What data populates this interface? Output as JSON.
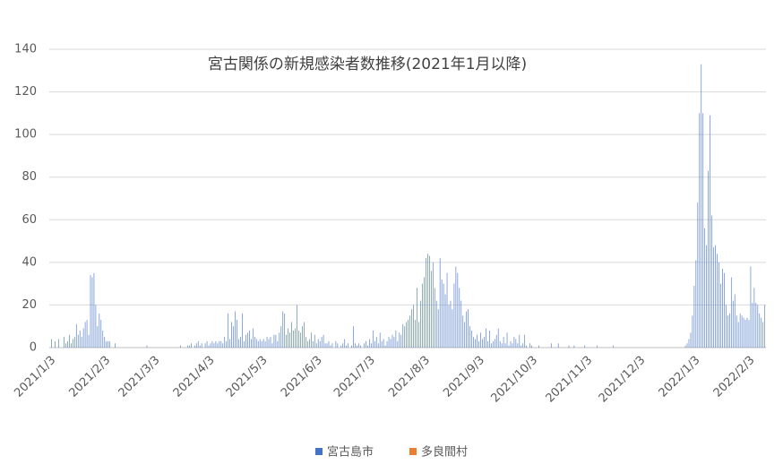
{
  "chart_data": {
    "type": "bar",
    "title": "宮古関係の新規感染者数推移(2021年1月以降)",
    "categories": [
      "2021/1/3",
      null,
      null,
      null,
      null,
      null,
      null,
      null,
      null,
      null,
      null,
      null,
      null,
      null,
      null,
      null,
      null,
      null,
      null,
      null,
      null,
      null,
      null,
      null,
      null,
      null,
      null,
      null,
      null,
      null,
      null,
      "2021/2/3",
      null,
      null,
      null,
      null,
      null,
      null,
      null,
      null,
      null,
      null,
      null,
      null,
      null,
      null,
      null,
      null,
      null,
      null,
      null,
      null,
      null,
      null,
      null,
      null,
      null,
      null,
      null,
      "2021/3/3",
      null,
      null,
      null,
      null,
      null,
      null,
      null,
      null,
      null,
      null,
      null,
      null,
      null,
      null,
      null,
      null,
      null,
      null,
      null,
      null,
      null,
      null,
      null,
      null,
      null,
      null,
      null,
      null,
      null,
      null,
      "2021/4/3",
      null,
      null,
      null,
      null,
      null,
      null,
      null,
      null,
      null,
      null,
      null,
      null,
      null,
      null,
      null,
      null,
      null,
      null,
      null,
      null,
      null,
      null,
      null,
      null,
      null,
      null,
      null,
      null,
      null,
      "2021/5/3",
      null,
      null,
      null,
      null,
      null,
      null,
      null,
      null,
      null,
      null,
      null,
      null,
      null,
      null,
      null,
      null,
      null,
      null,
      null,
      null,
      null,
      null,
      null,
      null,
      null,
      null,
      null,
      null,
      null,
      null,
      "2021/6/3",
      null,
      null,
      null,
      null,
      null,
      null,
      null,
      null,
      null,
      null,
      null,
      null,
      null,
      null,
      null,
      null,
      null,
      null,
      null,
      null,
      null,
      null,
      null,
      null,
      null,
      null,
      null,
      null,
      null,
      "2021/7/3",
      null,
      null,
      null,
      null,
      null,
      null,
      null,
      null,
      null,
      null,
      null,
      null,
      null,
      null,
      null,
      null,
      null,
      null,
      null,
      null,
      null,
      null,
      null,
      null,
      null,
      null,
      null,
      null,
      null,
      null,
      "2021/8/3",
      null,
      null,
      null,
      null,
      null,
      null,
      null,
      null,
      null,
      null,
      null,
      null,
      null,
      null,
      null,
      null,
      null,
      null,
      null,
      null,
      null,
      null,
      null,
      null,
      null,
      null,
      null,
      null,
      null,
      null,
      "2021/9/3",
      null,
      null,
      null,
      null,
      null,
      null,
      null,
      null,
      null,
      null,
      null,
      null,
      null,
      null,
      null,
      null,
      null,
      null,
      null,
      null,
      null,
      null,
      null,
      null,
      null,
      null,
      null,
      null,
      null,
      "2021/10/3",
      null,
      null,
      null,
      null,
      null,
      null,
      null,
      null,
      null,
      null,
      null,
      null,
      null,
      null,
      null,
      null,
      null,
      null,
      null,
      null,
      null,
      null,
      null,
      null,
      null,
      null,
      null,
      null,
      null,
      null,
      "2021/11/3",
      null,
      null,
      null,
      null,
      null,
      null,
      null,
      null,
      null,
      null,
      null,
      null,
      null,
      null,
      null,
      null,
      null,
      null,
      null,
      null,
      null,
      null,
      null,
      null,
      null,
      null,
      null,
      null,
      null,
      "2021/12/3",
      null,
      null,
      null,
      null,
      null,
      null,
      null,
      null,
      null,
      null,
      null,
      null,
      null,
      null,
      null,
      null,
      null,
      null,
      null,
      null,
      null,
      null,
      null,
      null,
      null,
      null,
      null,
      null,
      null,
      null,
      "2022/1/3",
      null,
      null,
      null,
      null,
      null,
      null,
      null,
      null,
      null,
      null,
      null,
      null,
      null,
      null,
      null,
      null,
      null,
      null,
      null,
      null,
      null,
      null,
      null,
      null,
      null,
      null,
      null,
      null,
      null,
      null,
      "2022/2/3",
      null,
      null,
      null,
      null,
      null,
      null,
      null,
      null,
      null
    ],
    "series": [
      {
        "name": "宮古島市",
        "color": "#4472c4",
        "values": [
          0,
          4,
          0,
          3,
          0,
          4,
          0,
          0,
          5,
          2,
          3,
          6,
          2,
          4,
          5,
          11,
          6,
          8,
          5,
          9,
          12,
          13,
          6,
          34,
          33,
          35,
          20,
          10,
          16,
          13,
          8,
          5,
          3,
          3,
          3,
          0,
          0,
          2,
          0,
          0,
          0,
          0,
          0,
          0,
          0,
          0,
          0,
          0,
          0,
          0,
          0,
          0,
          0,
          0,
          0,
          1,
          0,
          0,
          0,
          0,
          0,
          0,
          0,
          0,
          0,
          0,
          0,
          0,
          0,
          0,
          0,
          0,
          0,
          0,
          1,
          0,
          0,
          0,
          1,
          1,
          2,
          0,
          1,
          2,
          3,
          1,
          2,
          0,
          2,
          3,
          1,
          2,
          3,
          2,
          3,
          2,
          3,
          3,
          2,
          5,
          3,
          16,
          4,
          12,
          10,
          17,
          13,
          4,
          5,
          16,
          3,
          6,
          7,
          8,
          4,
          9,
          5,
          4,
          3,
          4,
          3,
          4,
          3,
          5,
          4,
          5,
          2,
          6,
          6,
          3,
          7,
          10,
          17,
          16,
          6,
          9,
          7,
          12,
          8,
          9,
          20,
          8,
          7,
          10,
          12,
          5,
          3,
          4,
          7,
          3,
          6,
          2,
          4,
          3,
          5,
          6,
          2,
          2,
          3,
          1,
          2,
          0,
          3,
          2,
          0,
          1,
          2,
          4,
          1,
          2,
          0,
          1,
          10,
          2,
          1,
          2,
          1,
          0,
          2,
          3,
          1,
          4,
          2,
          8,
          3,
          5,
          2,
          7,
          3,
          4,
          1,
          3,
          5,
          4,
          6,
          5,
          8,
          3,
          7,
          6,
          11,
          10,
          12,
          13,
          15,
          18,
          20,
          13,
          28,
          12,
          22,
          30,
          33,
          42,
          44,
          43,
          36,
          40,
          28,
          22,
          18,
          42,
          32,
          30,
          25,
          35,
          20,
          22,
          18,
          30,
          38,
          35,
          28,
          22,
          15,
          12,
          17,
          18,
          10,
          8,
          5,
          4,
          6,
          3,
          7,
          4,
          5,
          9,
          3,
          8,
          2,
          3,
          4,
          6,
          9,
          3,
          2,
          5,
          2,
          7,
          1,
          3,
          2,
          5,
          4,
          2,
          6,
          1,
          2,
          6,
          1,
          0,
          2,
          1,
          0,
          0,
          0,
          1,
          0,
          0,
          0,
          0,
          0,
          0,
          2,
          0,
          0,
          0,
          2,
          0,
          0,
          0,
          0,
          0,
          1,
          0,
          0,
          1,
          0,
          0,
          0,
          0,
          0,
          1,
          0,
          0,
          0,
          0,
          0,
          0,
          1,
          0,
          0,
          0,
          0,
          0,
          0,
          0,
          0,
          1,
          0,
          0,
          0,
          0,
          0,
          0,
          0,
          0,
          0,
          0,
          0,
          0,
          0,
          0,
          0,
          0,
          0,
          0,
          0,
          0,
          0,
          0,
          0,
          0,
          0,
          0,
          0,
          0,
          0,
          0,
          0,
          0,
          0,
          0,
          0,
          0,
          0,
          0,
          0,
          0,
          1,
          2,
          4,
          7,
          15,
          29,
          41,
          68,
          110,
          133,
          110,
          56,
          48,
          83,
          109,
          62,
          47,
          48,
          44,
          40,
          30,
          37,
          35,
          20,
          15,
          16,
          33,
          22,
          25,
          15,
          12,
          16,
          15,
          14,
          13,
          14,
          13,
          38,
          21,
          28,
          21,
          20,
          16,
          14,
          12,
          20
        ]
      },
      {
        "name": "多良間村",
        "color": "#ed7d31",
        "values": [
          0,
          0,
          0,
          0,
          0,
          0,
          0,
          0,
          0,
          0,
          0,
          0,
          0,
          0,
          0,
          0,
          0,
          0,
          0,
          0,
          0,
          0,
          0,
          0,
          0,
          0,
          0,
          0,
          0,
          0,
          0,
          0,
          0,
          0,
          0,
          0,
          0,
          0,
          0,
          0,
          0,
          0,
          0,
          0,
          0,
          0,
          0,
          0,
          0,
          0,
          0,
          0,
          0,
          0,
          0,
          0,
          0,
          0,
          0,
          0,
          0,
          0,
          0,
          0,
          0,
          0,
          0,
          0,
          0,
          0,
          0,
          0,
          0,
          0,
          0,
          0,
          0,
          0,
          0,
          0,
          0,
          0,
          0,
          0,
          0,
          0,
          0,
          0,
          0,
          0,
          0,
          0,
          0,
          0,
          0,
          0,
          0,
          0,
          0,
          0,
          0,
          0,
          0,
          0,
          0,
          0,
          0,
          0,
          0,
          0,
          0,
          0,
          0,
          0,
          0,
          0,
          0,
          0,
          0,
          0,
          0,
          0,
          0,
          0,
          0,
          0,
          0,
          0,
          0,
          0,
          0,
          0,
          0,
          0,
          0,
          0,
          0,
          0,
          0,
          0,
          0,
          0,
          0,
          0,
          0,
          0,
          0,
          0,
          0,
          0,
          0,
          0,
          0,
          0,
          0,
          0,
          0,
          0,
          0,
          0,
          0,
          0,
          0,
          0,
          0,
          0,
          0,
          0,
          0,
          0,
          0,
          0,
          0,
          0,
          0,
          0,
          0,
          0,
          0,
          0,
          0,
          0,
          0,
          0,
          0,
          0,
          0,
          0,
          0,
          0,
          0,
          0,
          0,
          0,
          0,
          0,
          0,
          0,
          0,
          0,
          0,
          0,
          0,
          0,
          0,
          0,
          0,
          0,
          0,
          0,
          0,
          0,
          0,
          0,
          0,
          0,
          0,
          0,
          0,
          0,
          0,
          0,
          0,
          0,
          0,
          0,
          0,
          0,
          0,
          0,
          0,
          0,
          0,
          0,
          0,
          0,
          0,
          0,
          0,
          0,
          0,
          0,
          0,
          0,
          0,
          0,
          0,
          0,
          0,
          0,
          0,
          0,
          0,
          0,
          0,
          0,
          0,
          0,
          0,
          0,
          0,
          0,
          0,
          0,
          0,
          0,
          0,
          0,
          0,
          0,
          0,
          0,
          0,
          0,
          0,
          0,
          0,
          0,
          0,
          0,
          0,
          0,
          0,
          0,
          0,
          0,
          0,
          0,
          0,
          0,
          0,
          0,
          0,
          0,
          0,
          0,
          0,
          0,
          0,
          0,
          0,
          0,
          0,
          0,
          0,
          0,
          0,
          0,
          0,
          0,
          0,
          0,
          0,
          0,
          0,
          0,
          0,
          0,
          0,
          0,
          0,
          0,
          0,
          0,
          0,
          0,
          0,
          0,
          0,
          0,
          0,
          0,
          0,
          0,
          0,
          0,
          0,
          0,
          0,
          0,
          0,
          0,
          0,
          0,
          0,
          0,
          0,
          0,
          0,
          0,
          0,
          0,
          0,
          0,
          0,
          0,
          0,
          0,
          0,
          0,
          0,
          0,
          0,
          0,
          0,
          0,
          0,
          0,
          0,
          0,
          0,
          0,
          0,
          0,
          0,
          0,
          0,
          0,
          0,
          0,
          0,
          0,
          0,
          0,
          0,
          0,
          0,
          0,
          0,
          0,
          0,
          0,
          0,
          0,
          0,
          0,
          0,
          0,
          0,
          0,
          0,
          0,
          0,
          0,
          0,
          0
        ]
      }
    ],
    "ylim": [
      0,
      140
    ],
    "yticks": [
      0,
      20,
      40,
      60,
      80,
      100,
      120,
      140
    ],
    "grid": true,
    "legend": "bottom"
  }
}
